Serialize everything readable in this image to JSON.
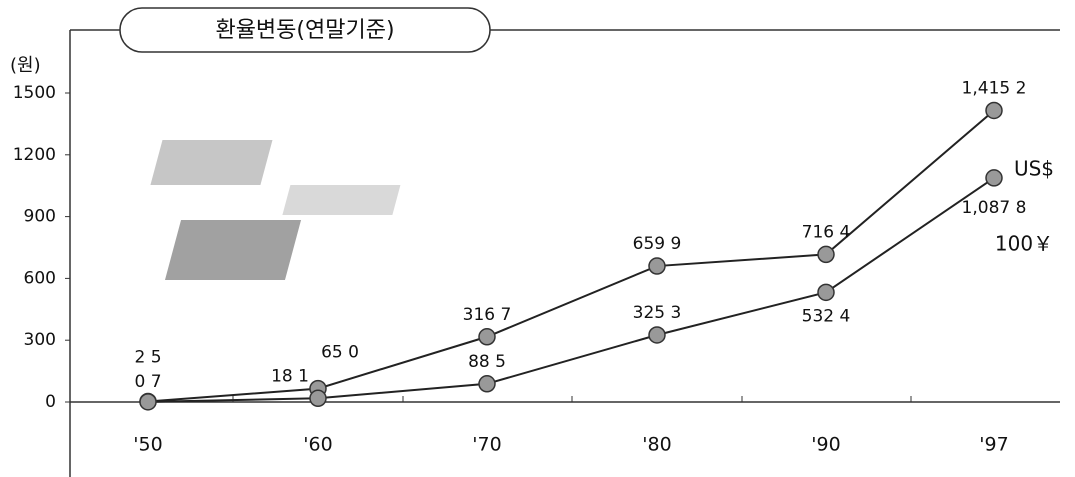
{
  "chart_data": {
    "type": "line",
    "title": "환율변동(연말기준)",
    "y_label": "(원)",
    "categories": [
      "'50",
      "'60",
      "'70",
      "'80",
      "'90",
      "'97"
    ],
    "series": [
      {
        "name": "US$",
        "color": "#222222",
        "values": [
          2.5,
          65.0,
          316.7,
          659.9,
          716.4,
          1415.2
        ],
        "value_labels": [
          "2 5",
          "65 0",
          "316 7",
          "659 9",
          "716 4",
          "1,415 2"
        ]
      },
      {
        "name": "100￥",
        "color": "#222222",
        "values": [
          0.7,
          18.1,
          88.5,
          325.3,
          532.4,
          1087.8
        ],
        "value_labels": [
          "0 7",
          "18 1",
          "88 5",
          "325 3",
          "532 4",
          "1,087 8"
        ]
      }
    ],
    "ylim": [
      0,
      1500
    ],
    "yticks": [
      0,
      300,
      600,
      900,
      1200,
      1500
    ],
    "grid": false
  }
}
